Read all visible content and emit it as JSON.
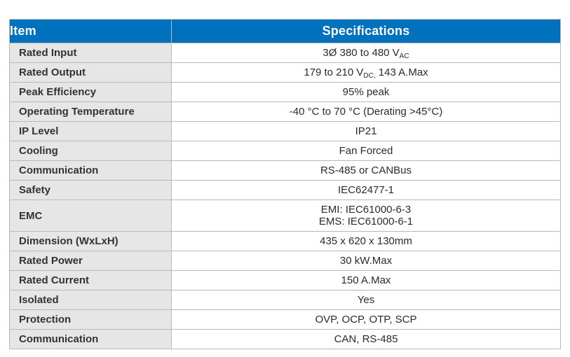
{
  "colors": {
    "header_bg": "#0071BC",
    "header_text": "#FFFFFF",
    "item_cell_bg": "#E6E6E6",
    "border": "#B7BABD",
    "item_text": "#333333",
    "spec_text": "#2B2B2B"
  },
  "table": {
    "headers": [
      "Item",
      "Specifications"
    ],
    "rows": [
      {
        "item": "Rated Input",
        "spec_lines": [
          [
            {
              "text": "3Ø 380 to 480 V"
            },
            {
              "text": "AC",
              "sub": true
            }
          ]
        ]
      },
      {
        "item": "Rated Output",
        "spec_lines": [
          [
            {
              "text": "179 to 210 V"
            },
            {
              "text": "DC,",
              "sub": true
            },
            {
              "text": " 143 A.Max"
            }
          ]
        ]
      },
      {
        "item": "Peak Efficiency",
        "spec_lines": [
          [
            {
              "text": "95% peak"
            }
          ]
        ]
      },
      {
        "item": "Operating Temperature",
        "spec_lines": [
          [
            {
              "text": "-40 °C to 70 °C (Derating >45°C)"
            }
          ]
        ]
      },
      {
        "item": "IP Level",
        "spec_lines": [
          [
            {
              "text": "IP21"
            }
          ]
        ]
      },
      {
        "item": "Cooling",
        "spec_lines": [
          [
            {
              "text": "Fan Forced"
            }
          ]
        ]
      },
      {
        "item": "Communication",
        "spec_lines": [
          [
            {
              "text": "RS-485 or CANBus"
            }
          ]
        ]
      },
      {
        "item": "Safety",
        "spec_lines": [
          [
            {
              "text": "IEC62477-1"
            }
          ]
        ]
      },
      {
        "item": "EMC",
        "spec_lines": [
          [
            {
              "text": "EMI: IEC61000-6-3"
            }
          ],
          [
            {
              "text": "EMS: IEC61000-6-1"
            }
          ]
        ]
      },
      {
        "item": "Dimension (WxLxH)",
        "spec_lines": [
          [
            {
              "text": "435 x 620 x 130mm"
            }
          ]
        ]
      },
      {
        "item": "Rated Power",
        "spec_lines": [
          [
            {
              "text": "30 kW.Max"
            }
          ]
        ]
      },
      {
        "item": "Rated Current",
        "spec_lines": [
          [
            {
              "text": "150 A.Max"
            }
          ]
        ]
      },
      {
        "item": "Isolated",
        "spec_lines": [
          [
            {
              "text": "Yes"
            }
          ]
        ]
      },
      {
        "item": "Protection",
        "spec_lines": [
          [
            {
              "text": "OVP, OCP, OTP, SCP"
            }
          ]
        ]
      },
      {
        "item": "Communication",
        "spec_lines": [
          [
            {
              "text": "CAN, RS-485"
            }
          ]
        ]
      }
    ]
  }
}
